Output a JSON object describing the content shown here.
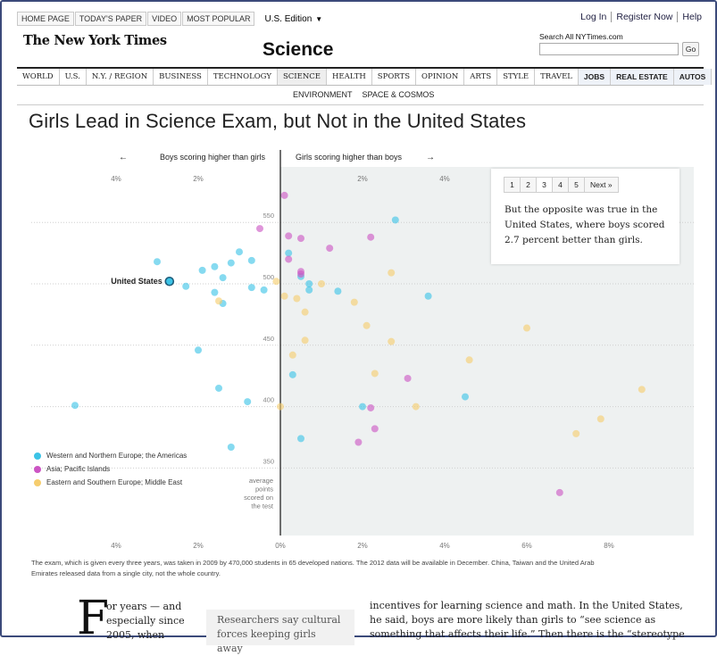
{
  "topnav": {
    "tabs": [
      "HOME PAGE",
      "TODAY'S PAPER",
      "VIDEO",
      "MOST POPULAR"
    ],
    "edition": "U.S. Edition",
    "account": [
      "Log In",
      "Register Now",
      "Help"
    ]
  },
  "masthead": {
    "logo": "The New York Times",
    "section": "Science",
    "search_label": "Search All NYTimes.com",
    "search_value": "",
    "go_label": "Go"
  },
  "sections": [
    "WORLD",
    "U.S.",
    "N.Y. / REGION",
    "BUSINESS",
    "TECHNOLOGY",
    "SCIENCE",
    "HEALTH",
    "SPORTS",
    "OPINION",
    "ARTS",
    "STYLE",
    "TRAVEL",
    "JOBS",
    "REAL ESTATE",
    "AUTOS"
  ],
  "subsections": [
    "ENVIRONMENT",
    "SPACE & COSMOS"
  ],
  "headline": "Girls Lead in Science Exam, but Not in the United States",
  "pager": {
    "pages": [
      "1",
      "2",
      "3",
      "4",
      "5"
    ],
    "current": "3",
    "next": "Next »",
    "text": "But the opposite was true in the United States, where boys scored 2.7 percent better than girls."
  },
  "footnote": "The exam, which is given every three years, was taken in 2009 by 470,000 students in 65 developed nations. The 2012 data will be available in December. China, Taiwan and the United Arab Emirates released data from a single city, not the whole country.",
  "article": {
    "dropcap": "F",
    "col1": "or years — and especially since 2005, when",
    "pullquote": "Researchers say cultural forces keeping girls away",
    "col3": "incentives for learning science and math. In the United States, he said, boys are more likely than girls to “see science as something that affects their life.” Then there is the “stereotype"
  },
  "chart_data": {
    "type": "scatter",
    "direction_left": "Boys scoring higher than girls",
    "direction_right": "Girls scoring higher than boys",
    "ylabel": "average points scored on the test",
    "xlim": [
      -4,
      10
    ],
    "ylim": [
      285,
      585
    ],
    "x_ticks_top": [
      "4%",
      "2%",
      "2%",
      "4%"
    ],
    "x_ticks_bottom": [
      "4%",
      "2%",
      "0%",
      "2%",
      "4%",
      "6%",
      "8%"
    ],
    "y_ticks": [
      550,
      500,
      450,
      400,
      350
    ],
    "annotation": "United States",
    "colors": {
      "west": "#3cc3e6",
      "asia": "#cc55c4",
      "east": "#f6cd6e"
    },
    "series": [
      {
        "name": "Western and Northern Europe; the Americas",
        "key": "west",
        "points": [
          [
            -2.7,
            502
          ],
          [
            -3,
            518
          ],
          [
            -5,
            401
          ],
          [
            -2.3,
            498
          ],
          [
            -2,
            446
          ],
          [
            -1.9,
            511
          ],
          [
            -1.6,
            514
          ],
          [
            -1.4,
            505
          ],
          [
            -1.2,
            517
          ],
          [
            -1.6,
            493
          ],
          [
            -1.4,
            484
          ],
          [
            -1,
            526
          ],
          [
            -0.7,
            519
          ],
          [
            -0.7,
            497
          ],
          [
            -0.4,
            495
          ],
          [
            -1.5,
            415
          ],
          [
            -0.8,
            404
          ],
          [
            -1.2,
            367
          ],
          [
            0.2,
            525
          ],
          [
            0.5,
            506
          ],
          [
            0.7,
            500
          ],
          [
            0.7,
            495
          ],
          [
            1.4,
            494
          ],
          [
            0.3,
            426
          ],
          [
            0.5,
            374
          ],
          [
            2,
            400
          ],
          [
            2.8,
            552
          ],
          [
            3.6,
            490
          ],
          [
            4.5,
            408
          ]
        ]
      },
      {
        "name": "Asia; Pacific Islands",
        "key": "asia",
        "points": [
          [
            0.1,
            572
          ],
          [
            -0.5,
            545
          ],
          [
            0.2,
            539
          ],
          [
            0.2,
            520
          ],
          [
            0.5,
            537
          ],
          [
            0.5,
            508
          ],
          [
            1.2,
            529
          ],
          [
            2.2,
            538
          ],
          [
            0.5,
            510
          ],
          [
            3.1,
            423
          ],
          [
            2.2,
            399
          ],
          [
            2.3,
            382
          ],
          [
            1.9,
            371
          ],
          [
            6.8,
            330
          ]
        ]
      },
      {
        "name": "Eastern and Southern Europe; Middle East",
        "key": "east",
        "points": [
          [
            -1.5,
            486
          ],
          [
            -0.1,
            502
          ],
          [
            0.1,
            490
          ],
          [
            0.4,
            488
          ],
          [
            0.6,
            477
          ],
          [
            1,
            500
          ],
          [
            1.8,
            485
          ],
          [
            2.1,
            466
          ],
          [
            2.7,
            509
          ],
          [
            0.6,
            454
          ],
          [
            0.3,
            442
          ],
          [
            2.7,
            453
          ],
          [
            2.3,
            427
          ],
          [
            0,
            400
          ],
          [
            3.3,
            400
          ],
          [
            4.6,
            438
          ],
          [
            6,
            464
          ],
          [
            7.2,
            378
          ],
          [
            7.8,
            390
          ],
          [
            8.8,
            414
          ]
        ]
      }
    ]
  }
}
